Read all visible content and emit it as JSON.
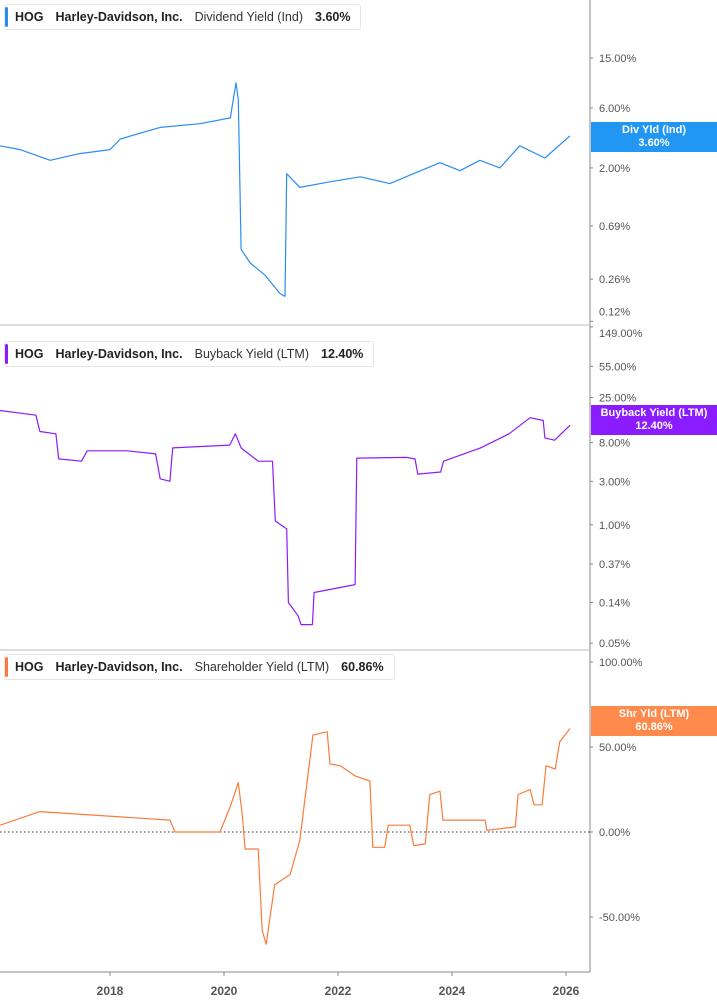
{
  "colors": {
    "div": "#2b8cf0",
    "buy": "#8d1cf5",
    "shr": "#f97c3c"
  },
  "chart_data": [
    {
      "type": "line",
      "ticker": "HOG",
      "company": "Harley-Davidson, Inc.",
      "metric": "Dividend Yield (Ind)",
      "value_label": "3.60%",
      "tag_title": "Div Yld (Ind)",
      "tag_value": "3.60%",
      "yscale": "log",
      "yticks": [
        "15.00%",
        "6.00%",
        "2.00%",
        "0.69%",
        "0.26%",
        "0.12%"
      ],
      "ytick_values": [
        15,
        6,
        2,
        0.69,
        0.26,
        0.12
      ],
      "x": [
        2016.07,
        2016.42,
        2016.95,
        2017.47,
        2018.0,
        2018.18,
        2018.88,
        2019.58,
        2020.11,
        2020.21,
        2020.25,
        2020.3,
        2020.46,
        2020.72,
        2020.98,
        2021.07,
        2021.1,
        2021.33,
        2021.86,
        2022.39,
        2022.91,
        2023.26,
        2023.79,
        2024.14,
        2024.49,
        2024.84,
        2025.19,
        2025.63,
        2026.07
      ],
      "y": [
        3.0,
        2.8,
        2.3,
        2.6,
        2.8,
        3.4,
        4.2,
        4.5,
        5.0,
        9.5,
        7,
        0.45,
        0.35,
        0.28,
        0.2,
        0.19,
        1.8,
        1.4,
        1.55,
        1.7,
        1.5,
        1.75,
        2.2,
        1.9,
        2.3,
        2.0,
        3.0,
        2.4,
        3.6
      ]
    },
    {
      "type": "line",
      "ticker": "HOG",
      "company": "Harley-Davidson, Inc.",
      "metric": "Buyback Yield (LTM)",
      "value_label": "12.40%",
      "tag_title": "Buyback Yield (LTM)",
      "tag_value": "12.40%",
      "yscale": "log",
      "yticks": [
        "149.00%",
        "55.00%",
        "25.00%",
        "8.00%",
        "3.00%",
        "1.00%",
        "0.37%",
        "0.14%",
        "0.05%"
      ],
      "ytick_values": [
        149,
        55,
        25,
        8,
        3,
        1,
        0.37,
        0.14,
        0.05
      ],
      "x": [
        2016.07,
        2016.7,
        2016.77,
        2017.05,
        2017.1,
        2017.5,
        2017.6,
        2018.3,
        2018.8,
        2018.88,
        2019.05,
        2019.1,
        2020.1,
        2020.2,
        2020.3,
        2020.6,
        2020.85,
        2020.9,
        2021.1,
        2021.13,
        2021.3,
        2021.35,
        2021.55,
        2021.58,
        2022.3,
        2022.33,
        2023.2,
        2023.35,
        2023.4,
        2023.8,
        2023.85,
        2024.5,
        2025.0,
        2025.37,
        2025.6,
        2025.63,
        2025.8,
        2026.07
      ],
      "y": [
        18,
        16,
        10.6,
        10,
        5.3,
        5,
        6.5,
        6.5,
        6,
        3.2,
        3.0,
        7,
        7.5,
        10,
        7,
        5,
        5,
        1.1,
        0.9,
        0.14,
        0.1,
        0.08,
        0.08,
        0.18,
        0.22,
        5.4,
        5.5,
        5.3,
        3.6,
        3.8,
        5,
        7,
        10,
        15,
        14,
        9,
        8.5,
        12.4
      ]
    },
    {
      "type": "line",
      "ticker": "HOG",
      "company": "Harley-Davidson, Inc.",
      "metric": "Shareholder Yield (LTM)",
      "value_label": "60.86%",
      "tag_title": "Shr Yld (LTM)",
      "tag_value": "60.86%",
      "yscale": "linear",
      "yticks": [
        "100.00%",
        "50.00%",
        "0.00%",
        "-50.00%"
      ],
      "ytick_values": [
        100,
        50,
        0,
        -50
      ],
      "x": [
        2016.07,
        2016.77,
        2019.05,
        2019.14,
        2019.93,
        2020.11,
        2020.25,
        2020.32,
        2020.37,
        2020.6,
        2020.67,
        2020.74,
        2020.89,
        2021.16,
        2021.33,
        2021.56,
        2021.81,
        2021.86,
        2022.04,
        2022.3,
        2022.56,
        2022.61,
        2022.82,
        2022.88,
        2023.26,
        2023.33,
        2023.53,
        2023.61,
        2023.79,
        2023.84,
        2024.58,
        2024.61,
        2025.11,
        2025.16,
        2025.37,
        2025.44,
        2025.58,
        2025.65,
        2025.81,
        2025.89,
        2026.07
      ],
      "y": [
        4,
        12,
        7,
        0,
        0,
        15,
        29,
        10,
        -10,
        -10,
        -58,
        -66,
        -31,
        -25,
        -5,
        57,
        59,
        40,
        39,
        33,
        30,
        -9,
        -9,
        4,
        4,
        -8,
        -7,
        22,
        24,
        7,
        7,
        1,
        3,
        22,
        25,
        16,
        16,
        39,
        37,
        53,
        60.86
      ]
    }
  ],
  "xticks": [
    "2018",
    "2020",
    "2022",
    "2024",
    "2026"
  ],
  "xtick_values": [
    2018,
    2020,
    2022,
    2024,
    2026
  ]
}
